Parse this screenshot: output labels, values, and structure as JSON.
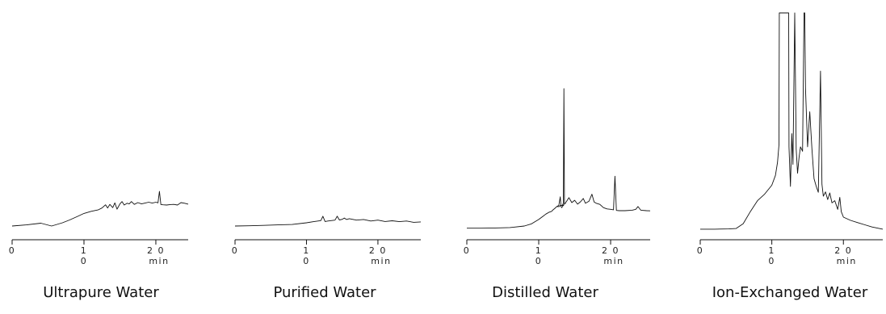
{
  "chart_data": [
    {
      "type": "line",
      "title": "Ultrapure Water",
      "xlabel": "min",
      "xlim": [
        0,
        24.5
      ],
      "ylim": [
        0,
        100
      ],
      "x_ticks": [
        {
          "value": 0,
          "labels": [
            "0"
          ]
        },
        {
          "value": 10,
          "labels": [
            "1",
            "0"
          ]
        },
        {
          "value": 20,
          "labels": [
            "2 0",
            "min"
          ]
        }
      ],
      "series": [
        {
          "x": [
            0,
            2,
            4,
            5.5,
            7,
            8,
            9,
            10,
            11,
            12,
            12.5,
            13,
            13.3,
            13.6,
            14,
            14.3,
            14.6,
            15,
            15.3,
            15.6,
            16,
            16.3,
            16.6,
            17,
            17.5,
            18,
            18.5,
            19,
            19.5,
            20,
            20.3,
            20.5,
            20.7,
            21,
            21.5,
            22,
            22.5,
            23,
            23.5,
            24,
            24.5
          ],
          "y": [
            1.5,
            2.0,
            2.8,
            1.5,
            3.0,
            4.3,
            5.8,
            7.3,
            8.3,
            9.0,
            9.8,
            11.3,
            9.8,
            11.5,
            10.0,
            12.2,
            9.3,
            11.7,
            12.8,
            11.2,
            12.0,
            11.7,
            12.8,
            11.5,
            12.3,
            11.7,
            12.1,
            12.5,
            12.1,
            12.5,
            12.2,
            17.5,
            11.4,
            11.3,
            11.2,
            11.4,
            11.5,
            11.2,
            12.3,
            12.0,
            11.6
          ]
        }
      ]
    },
    {
      "type": "line",
      "title": "Purified Water",
      "xlabel": "min",
      "xlim": [
        0,
        26
      ],
      "ylim": [
        0,
        100
      ],
      "x_ticks": [
        {
          "value": 0,
          "labels": [
            "0"
          ]
        },
        {
          "value": 10,
          "labels": [
            "1",
            "0"
          ]
        },
        {
          "value": 20,
          "labels": [
            "2 0",
            "min"
          ]
        }
      ],
      "series": [
        {
          "x": [
            0,
            2,
            4,
            6,
            8,
            10,
            11,
            12,
            12.3,
            12.6,
            13,
            14,
            14.3,
            14.6,
            15,
            15.3,
            15.6,
            16,
            17,
            18,
            19,
            20,
            21,
            22,
            23,
            24,
            25,
            26
          ],
          "y": [
            1.5,
            1.6,
            1.8,
            2.0,
            2.2,
            3.0,
            3.5,
            4.0,
            6.0,
            3.6,
            3.8,
            4.2,
            6.0,
            4.3,
            4.6,
            5.2,
            4.5,
            4.9,
            4.2,
            4.5,
            3.8,
            4.2,
            3.6,
            3.9,
            3.5,
            3.8,
            3.2,
            3.4
          ]
        }
      ]
    },
    {
      "type": "line",
      "title": "Distilled Water",
      "xlabel": "min",
      "xlim": [
        0,
        25.5
      ],
      "ylim": [
        0,
        100
      ],
      "x_ticks": [
        {
          "value": 0,
          "labels": [
            "0"
          ]
        },
        {
          "value": 10,
          "labels": [
            "1",
            "0"
          ]
        },
        {
          "value": 20,
          "labels": [
            "2 0",
            "min"
          ]
        }
      ],
      "series": [
        {
          "x": [
            0,
            2,
            4,
            6,
            8,
            9,
            10,
            10.6,
            11,
            11.4,
            11.8,
            12,
            12.2,
            12.5,
            12.8,
            13.0,
            13.1,
            13.2,
            13.5,
            13.8,
            14.2,
            14.6,
            15,
            15.4,
            15.8,
            16.2,
            16.5,
            17,
            17.4,
            17.7,
            18,
            18.5,
            19,
            19.5,
            20,
            20.4,
            20.6,
            20.8,
            21.2,
            22,
            23,
            23.5,
            23.8,
            24.2,
            25,
            25.5
          ],
          "y": [
            0.5,
            0.5,
            0.6,
            0.8,
            1.5,
            2.5,
            4.5,
            6.0,
            7.0,
            7.8,
            8.3,
            9.0,
            9.5,
            10.5,
            11.0,
            15.0,
            10.5,
            10.0,
            11.5,
            12.5,
            14.6,
            12.3,
            13.4,
            11.6,
            12.7,
            14.2,
            12.0,
            13.0,
            16.2,
            12.6,
            12.0,
            11.5,
            10.0,
            9.4,
            9.2,
            9.0,
            24.5,
            8.7,
            8.6,
            8.6,
            8.8,
            9.2,
            10.5,
            8.8,
            8.6,
            8.5
          ]
        },
        {
          "x": [
            12.5,
            12.85,
            13.0,
            13.15,
            13.5
          ],
          "y": [
            10.5,
            10.5,
            11.0,
            11.0,
            11.0
          ]
        },
        {
          "x": [
            13.3,
            13.42,
            13.5,
            13.58,
            13.75
          ],
          "y": [
            11.2,
            12.0,
            65.0,
            12.0,
            11.8
          ]
        }
      ]
    },
    {
      "type": "line",
      "title": "Ion-Exchanged Water",
      "xlabel": "min",
      "xlim": [
        0,
        25.5
      ],
      "ylim": [
        0,
        100
      ],
      "x_ticks": [
        {
          "value": 0,
          "labels": [
            "0"
          ]
        },
        {
          "value": 10,
          "labels": [
            "1",
            "0"
          ]
        },
        {
          "value": 20,
          "labels": [
            "2 0",
            "min"
          ]
        }
      ],
      "series": [
        {
          "x": [
            0,
            2,
            4,
            5,
            6,
            7,
            8,
            9,
            10,
            10.5,
            10.8,
            11.0,
            11.05,
            12.35,
            12.4,
            12.6,
            12.8,
            12.95,
            13.2,
            13.4,
            13.6,
            13.8,
            14.0,
            14.3,
            14.5,
            14.6,
            14.7,
            15.0,
            15.3,
            15.6,
            15.9,
            16.2,
            16.5,
            16.8,
            17.0,
            17.2,
            17.5,
            17.8,
            18.1,
            18.4,
            18.8,
            19.2,
            19.5,
            19.7,
            20,
            21,
            22,
            23,
            24,
            25.5
          ],
          "y": [
            1.5,
            1.5,
            1.6,
            1.8,
            4.0,
            9.5,
            14.5,
            17.5,
            21.5,
            26.0,
            32.0,
            40.0,
            100,
            100,
            39.0,
            21.0,
            45.0,
            31.0,
            100,
            38.0,
            27.0,
            34.0,
            39.0,
            37.0,
            100,
            100,
            66.0,
            39.0,
            55.0,
            38.0,
            24.5,
            21.0,
            18.3,
            73.5,
            22.0,
            16.5,
            18.5,
            15.0,
            18.0,
            13.5,
            14.5,
            10.5,
            16.0,
            9.5,
            7.0,
            5.5,
            4.5,
            3.5,
            2.5,
            1.5
          ]
        }
      ]
    }
  ]
}
